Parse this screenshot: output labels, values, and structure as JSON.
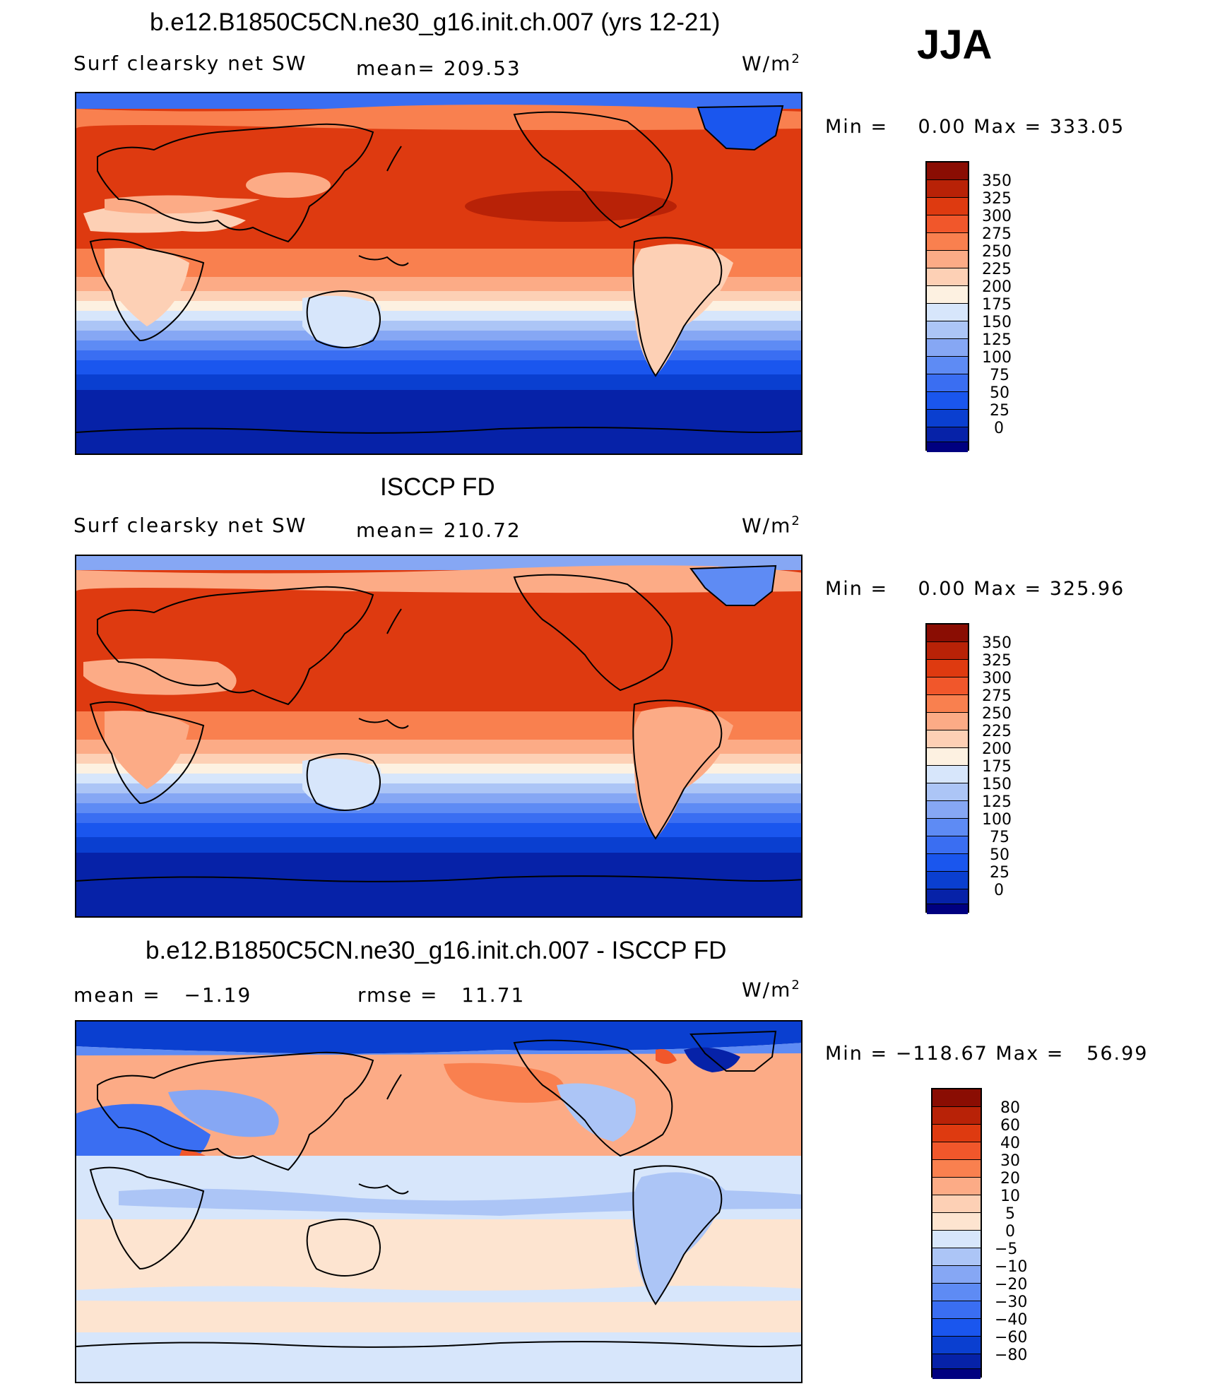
{
  "season": "JJA",
  "panels": [
    {
      "title": "b.e12.B1850C5CN.ne30_g16.init.ch.007 (yrs 12-21)",
      "left_label": "Surf clearsky net SW",
      "mid_label": "mean= 209.53",
      "units": "W/m",
      "units_sup": "2",
      "minmax": "Min =    0.00 Max = 333.05",
      "colorbar_ticks": [
        "350",
        "325",
        "300",
        "275",
        "250",
        "225",
        "200",
        "175",
        "150",
        "125",
        "100",
        "75",
        "50",
        "25",
        "0"
      ]
    },
    {
      "title": "ISCCP FD",
      "left_label": "Surf clearsky net SW",
      "mid_label": "mean= 210.72",
      "units": "W/m",
      "units_sup": "2",
      "minmax": "Min =    0.00 Max = 325.96",
      "colorbar_ticks": [
        "350",
        "325",
        "300",
        "275",
        "250",
        "225",
        "200",
        "175",
        "150",
        "125",
        "100",
        "75",
        "50",
        "25",
        "0"
      ]
    },
    {
      "title": "b.e12.B1850C5CN.ne30_g16.init.ch.007 - ISCCP FD",
      "left_label": "mean =   −1.19",
      "mid_label": "rmse =   11.71",
      "units": "W/m",
      "units_sup": "2",
      "minmax": "Min = −118.67 Max =   56.99",
      "colorbar_ticks": [
        "80",
        "60",
        "40",
        "30",
        "20",
        "10",
        "5",
        "0",
        "−5",
        "−10",
        "−20",
        "−30",
        "−40",
        "−60",
        "−80"
      ]
    }
  ],
  "colors": {
    "abs_scale": [
      "#000080",
      "#0622a8",
      "#0a3fd0",
      "#1a56ee",
      "#3a6ef2",
      "#5e8bf4",
      "#86a7f4",
      "#acc5f6",
      "#d7e6fb",
      "#fdf1e1",
      "#fdd0b5",
      "#fcab86",
      "#f9804f",
      "#f1572b",
      "#de3a10",
      "#b82207",
      "#8a0d03"
    ],
    "diff_scale": [
      "#000080",
      "#0622a8",
      "#0a3fd0",
      "#1a56ee",
      "#3a6ef2",
      "#5e8bf4",
      "#86a7f4",
      "#acc5f6",
      "#d7e6fb",
      "#fde4d0",
      "#fdd0b5",
      "#fcab86",
      "#f9804f",
      "#f1572b",
      "#de3a10",
      "#b82207",
      "#8a0d03"
    ]
  }
}
